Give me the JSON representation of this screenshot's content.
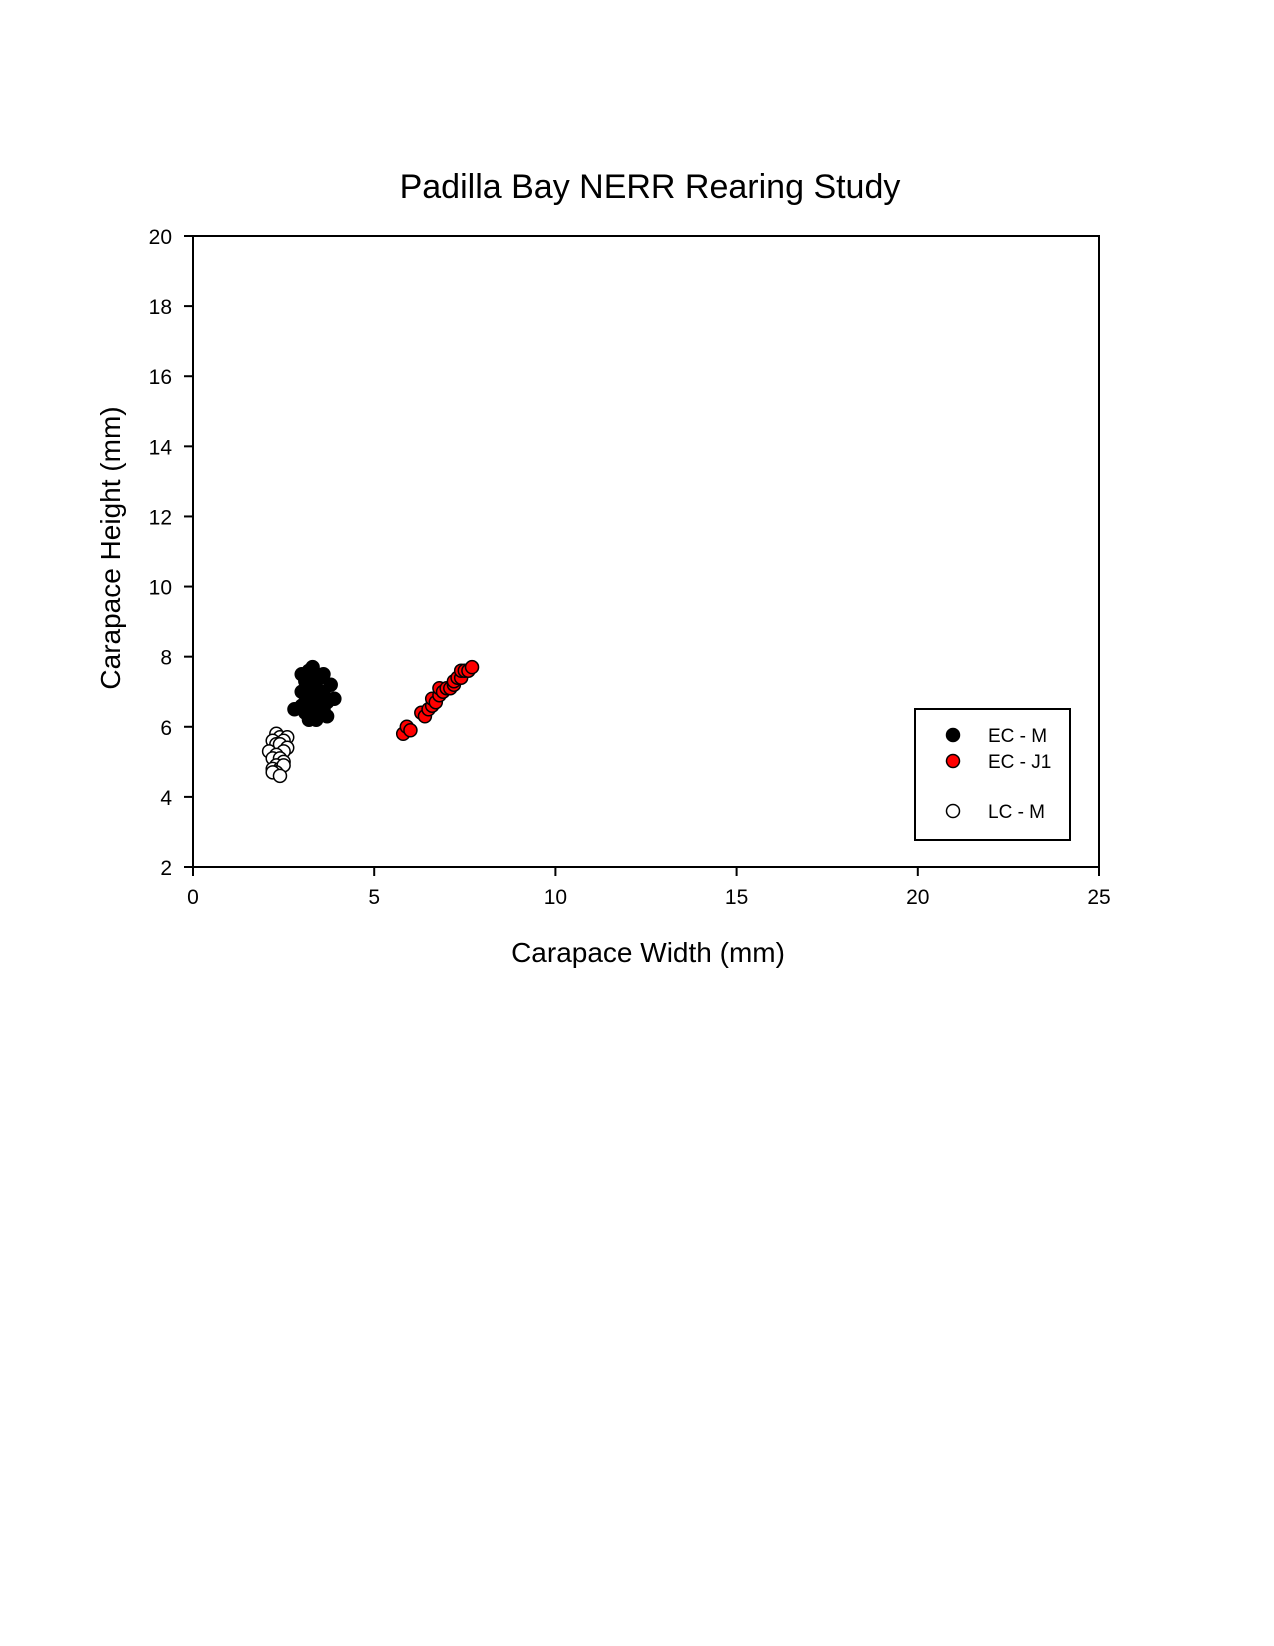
{
  "chart_data": {
    "type": "scatter",
    "title": "Padilla Bay NERR Rearing Study",
    "xlabel": "Carapace Width (mm)",
    "ylabel": "Carapace Height (mm)",
    "xlim": [
      0,
      25
    ],
    "ylim": [
      2,
      20
    ],
    "xticks": [
      0,
      5,
      10,
      15,
      20,
      25
    ],
    "yticks": [
      2,
      4,
      6,
      8,
      10,
      12,
      14,
      16,
      18,
      20
    ],
    "grid": false,
    "legend_position": "lower-right",
    "series": [
      {
        "name": "EC - M",
        "marker": "filled-circle",
        "fill": "#000000",
        "stroke": "#000000",
        "points": [
          [
            3.3,
            7.7
          ],
          [
            3.2,
            7.6
          ],
          [
            3.4,
            7.5
          ],
          [
            3.0,
            7.5
          ],
          [
            3.6,
            7.5
          ],
          [
            3.5,
            7.4
          ],
          [
            3.1,
            7.3
          ],
          [
            3.8,
            7.2
          ],
          [
            3.3,
            7.2
          ],
          [
            3.4,
            7.1
          ],
          [
            3.0,
            7.0
          ],
          [
            3.6,
            7.0
          ],
          [
            3.5,
            6.9
          ],
          [
            3.2,
            6.9
          ],
          [
            3.9,
            6.8
          ],
          [
            3.3,
            6.8
          ],
          [
            3.1,
            6.7
          ],
          [
            3.7,
            6.7
          ],
          [
            3.4,
            6.6
          ],
          [
            3.0,
            6.6
          ],
          [
            2.8,
            6.5
          ],
          [
            3.6,
            6.5
          ],
          [
            3.2,
            6.5
          ],
          [
            3.5,
            6.4
          ],
          [
            3.1,
            6.4
          ],
          [
            3.3,
            6.3
          ],
          [
            3.7,
            6.3
          ],
          [
            3.4,
            6.2
          ],
          [
            3.2,
            6.2
          ]
        ]
      },
      {
        "name": "EC - J1",
        "marker": "filled-circle",
        "fill": "#ff0000",
        "stroke": "#000000",
        "points": [
          [
            5.8,
            5.8
          ],
          [
            5.9,
            6.0
          ],
          [
            6.0,
            5.9
          ],
          [
            6.3,
            6.4
          ],
          [
            6.4,
            6.3
          ],
          [
            6.5,
            6.5
          ],
          [
            6.6,
            6.6
          ],
          [
            6.6,
            6.8
          ],
          [
            6.7,
            6.7
          ],
          [
            6.8,
            6.9
          ],
          [
            6.8,
            7.1
          ],
          [
            6.9,
            7.0
          ],
          [
            7.0,
            7.1
          ],
          [
            7.1,
            7.1
          ],
          [
            7.2,
            7.2
          ],
          [
            7.2,
            7.3
          ],
          [
            7.3,
            7.4
          ],
          [
            7.4,
            7.4
          ],
          [
            7.4,
            7.6
          ],
          [
            7.5,
            7.6
          ],
          [
            7.6,
            7.6
          ],
          [
            7.7,
            7.7
          ]
        ]
      },
      {
        "name": "LC - M",
        "marker": "open-circle",
        "fill": "#ffffff",
        "stroke": "#000000",
        "points": [
          [
            2.3,
            5.8
          ],
          [
            2.4,
            5.7
          ],
          [
            2.2,
            5.6
          ],
          [
            2.6,
            5.7
          ],
          [
            2.5,
            5.6
          ],
          [
            2.3,
            5.5
          ],
          [
            2.4,
            5.5
          ],
          [
            2.1,
            5.3
          ],
          [
            2.6,
            5.4
          ],
          [
            2.5,
            5.3
          ],
          [
            2.3,
            5.2
          ],
          [
            2.2,
            5.1
          ],
          [
            2.4,
            5.1
          ],
          [
            2.5,
            5.0
          ],
          [
            2.3,
            4.9
          ],
          [
            2.2,
            4.8
          ],
          [
            2.4,
            4.8
          ],
          [
            2.5,
            4.9
          ],
          [
            2.3,
            4.7
          ],
          [
            2.2,
            4.7
          ],
          [
            2.4,
            4.6
          ]
        ]
      }
    ]
  }
}
